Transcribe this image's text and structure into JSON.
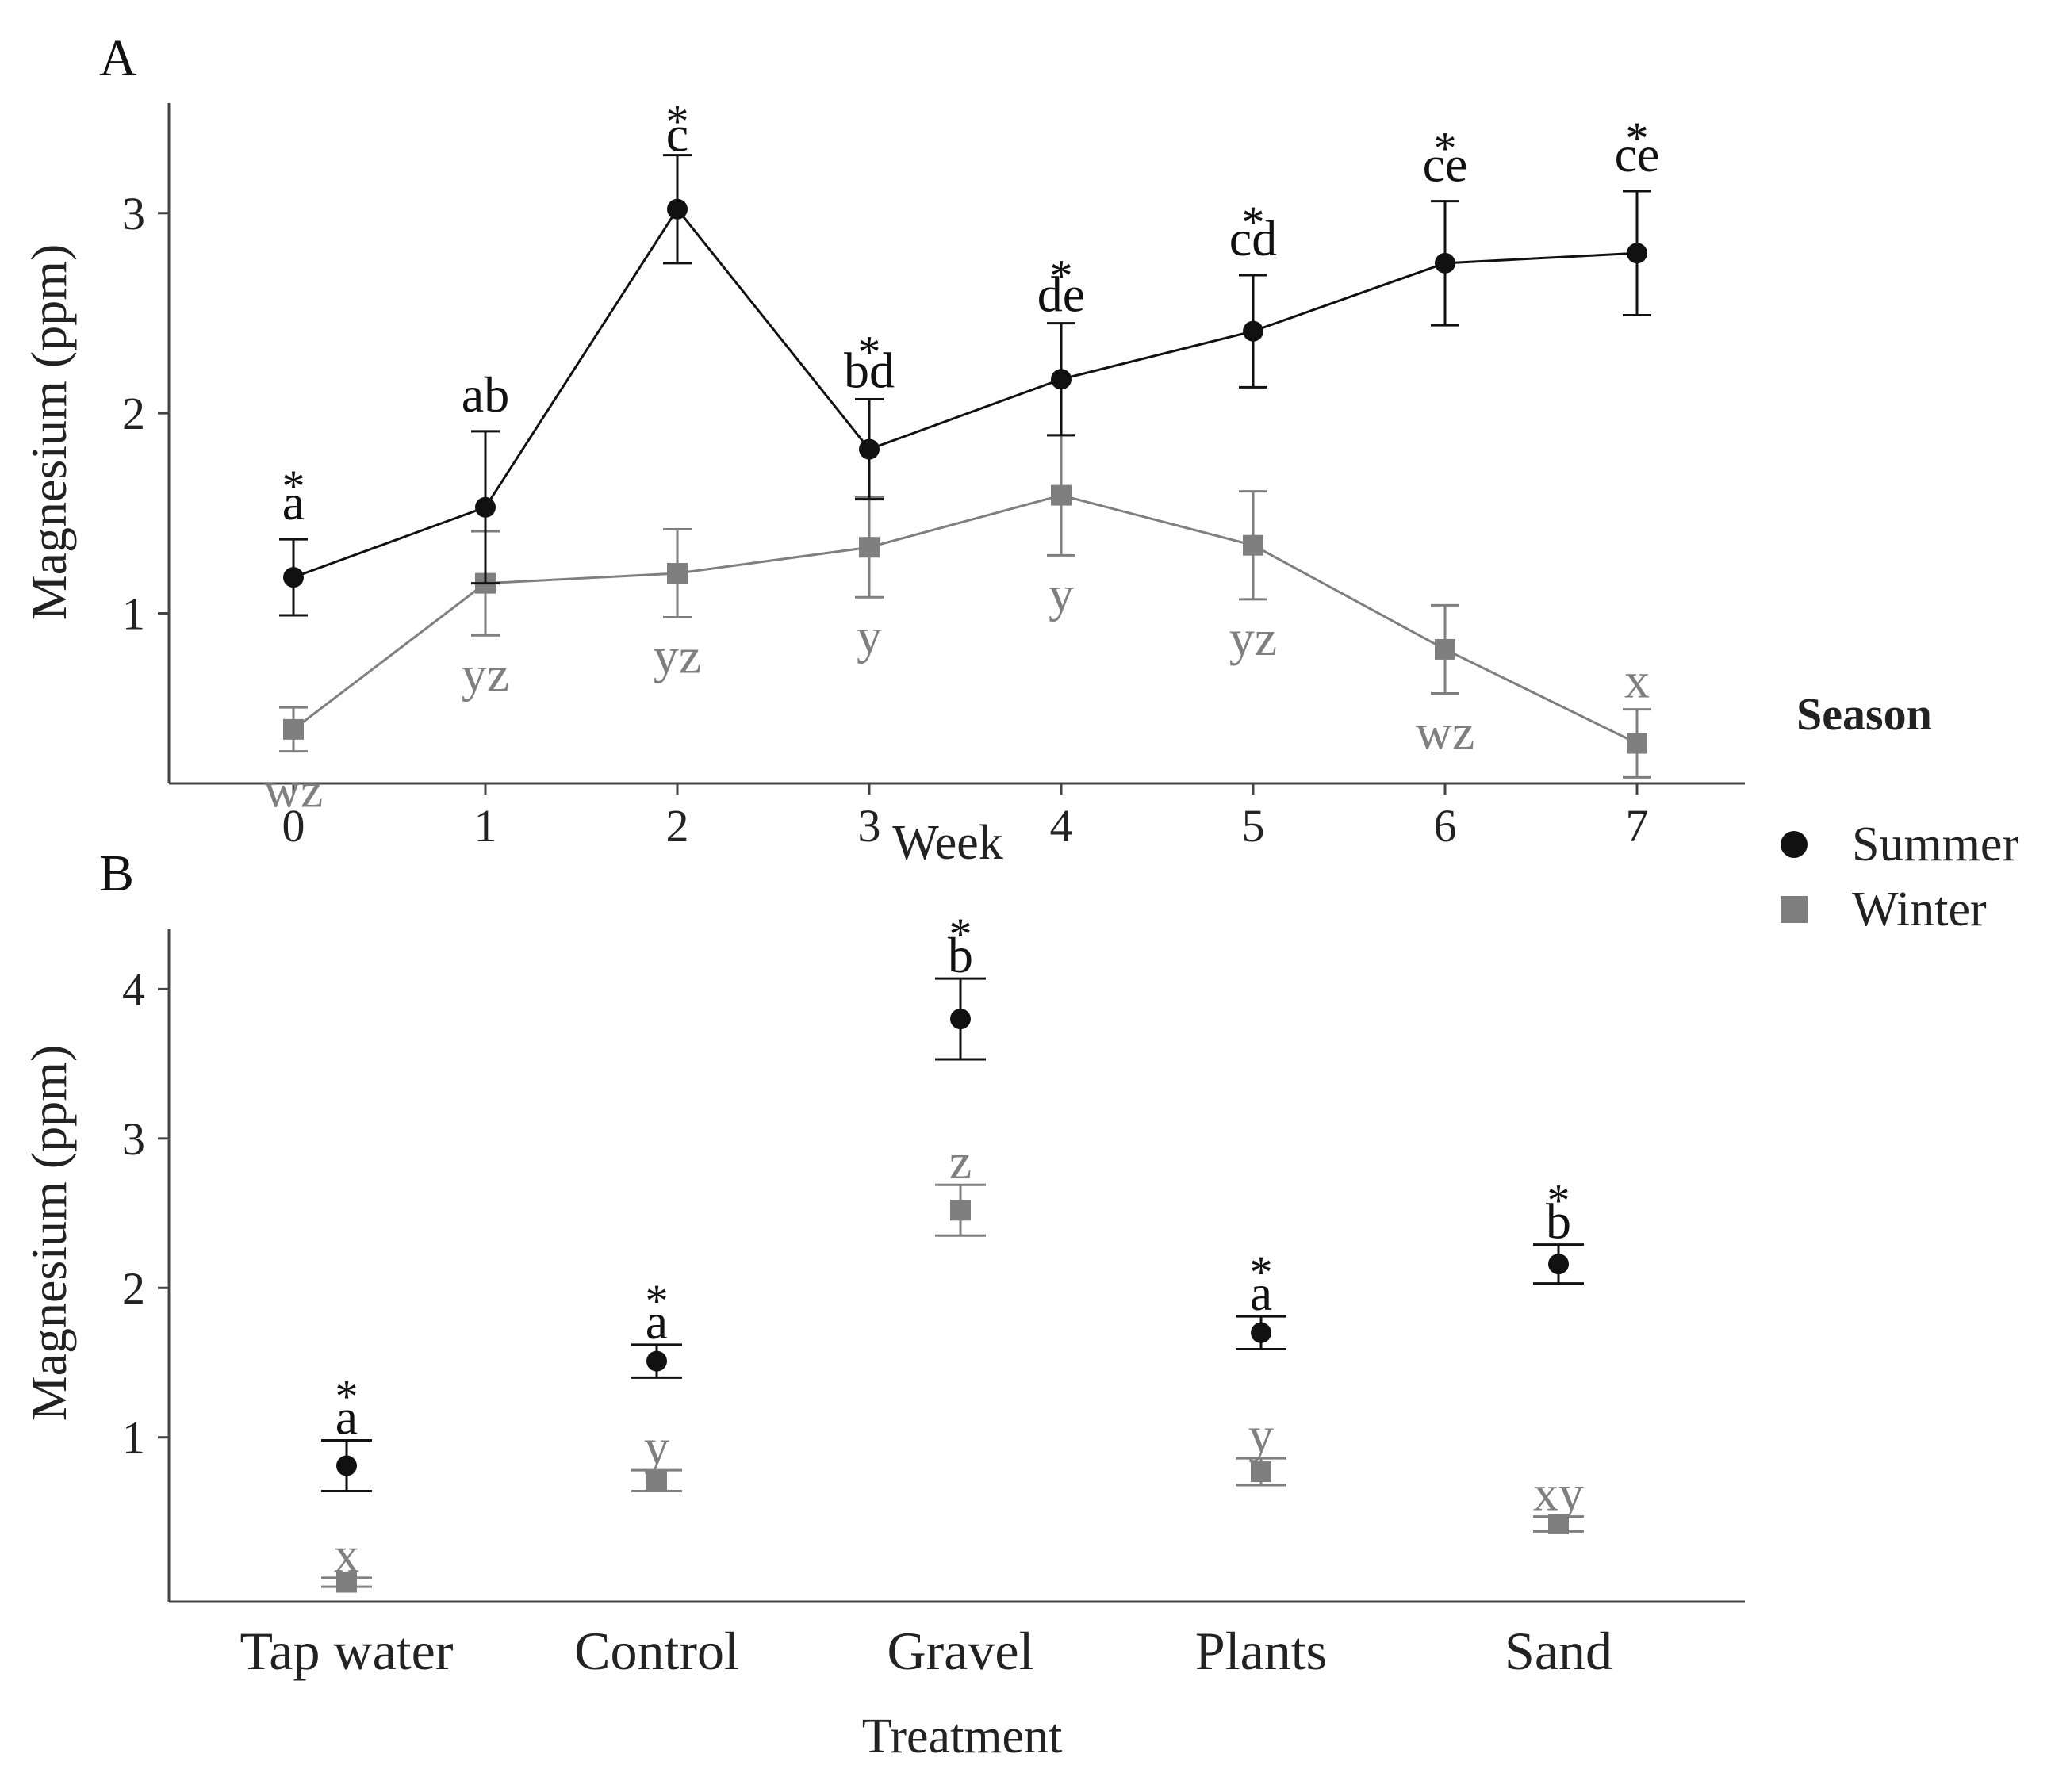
{
  "colors": {
    "summer": "#111111",
    "winter": "#7f7f7f"
  },
  "legend": {
    "title": "Season",
    "items": [
      {
        "label": "Summer",
        "symbol": "circle",
        "color": "#111111"
      },
      {
        "label": "Winter",
        "symbol": "square",
        "color": "#7f7f7f"
      }
    ]
  },
  "chart_data": [
    {
      "panel": "A",
      "type": "line",
      "xlabel": "Week",
      "ylabel": "Magnesium (ppm)",
      "x": [
        0,
        1,
        2,
        3,
        4,
        5,
        6,
        7
      ],
      "xlim": [
        -0.65,
        7.65
      ],
      "ylim": [
        0.15,
        3.55
      ],
      "yticks": [
        1,
        2,
        3
      ],
      "series": [
        {
          "name": "Summer",
          "marker": "circle",
          "values": [
            1.18,
            1.53,
            3.02,
            1.82,
            2.17,
            2.41,
            2.75,
            2.8
          ],
          "err": [
            0.19,
            0.38,
            0.27,
            0.25,
            0.28,
            0.28,
            0.31,
            0.31
          ],
          "letters": [
            "a",
            "ab",
            "c",
            "bd",
            "de",
            "cd",
            "ce",
            "ce"
          ],
          "stars": [
            "*",
            "",
            "*",
            "*",
            "*",
            "*",
            "*",
            "*"
          ]
        },
        {
          "name": "Winter",
          "marker": "square",
          "values": [
            0.42,
            1.15,
            1.2,
            1.33,
            1.59,
            1.34,
            0.82,
            0.35
          ],
          "err": [
            0.11,
            0.26,
            0.22,
            0.25,
            0.3,
            0.27,
            0.22,
            0.17
          ],
          "letters": [
            "wz",
            "yz",
            "yz",
            "y",
            "y",
            "yz",
            "wz",
            "x"
          ],
          "stars": [
            "",
            "",
            "",
            "",
            "",
            "",
            "",
            ""
          ]
        }
      ]
    },
    {
      "panel": "B",
      "type": "scatter",
      "xlabel": "Treatment",
      "ylabel": "Magnesium (ppm)",
      "categories": [
        "Tap water",
        "Control",
        "Gravel",
        "Plants",
        "Sand"
      ],
      "ylim": [
        -0.1,
        4.4
      ],
      "yticks": [
        1,
        2,
        3,
        4
      ],
      "series": [
        {
          "name": "Summer",
          "marker": "circle",
          "values": [
            0.81,
            1.51,
            3.8,
            1.7,
            2.16
          ],
          "err": [
            0.17,
            0.11,
            0.27,
            0.11,
            0.13
          ],
          "letters": [
            "a",
            "a",
            "b",
            "a",
            "b"
          ],
          "stars": [
            "*",
            "*",
            "*",
            "*",
            "*"
          ]
        },
        {
          "name": "Winter",
          "marker": "square",
          "values": [
            0.03,
            0.71,
            2.52,
            0.77,
            0.42
          ],
          "err": [
            0.03,
            0.07,
            0.17,
            0.09,
            0.05
          ],
          "letters": [
            "x",
            "y",
            "z",
            "y",
            "xy"
          ],
          "stars": [
            "",
            "",
            "",
            "",
            ""
          ]
        }
      ]
    }
  ]
}
